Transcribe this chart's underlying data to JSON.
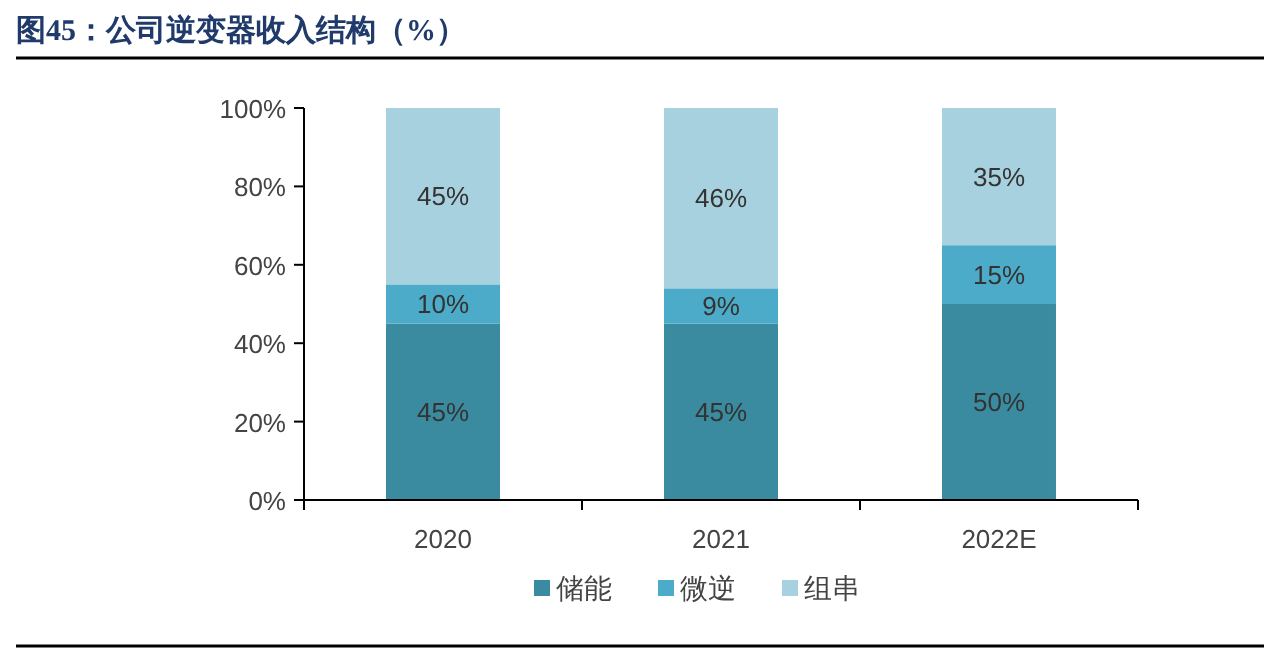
{
  "chart_data": {
    "type": "bar",
    "title": "图45：公司逆变器收入结构（%）",
    "categories": [
      "2020",
      "2021",
      "2022E"
    ],
    "stacked": true,
    "series": [
      {
        "name": "储能",
        "color": "#3b8ba0",
        "values": [
          45,
          45,
          50
        ],
        "value_labels": [
          "45%",
          "45%",
          "50%"
        ]
      },
      {
        "name": "微逆",
        "color": "#4babc8",
        "values": [
          10,
          9,
          15
        ],
        "value_labels": [
          "10%",
          "9%",
          "15%"
        ]
      },
      {
        "name": "组串",
        "color": "#a8d1df",
        "values": [
          45,
          46,
          35
        ],
        "value_labels": [
          "45%",
          "46%",
          "35%"
        ]
      }
    ],
    "ylim": [
      0,
      100
    ],
    "yticks": [
      {
        "value": 0,
        "label": "0%"
      },
      {
        "value": 20,
        "label": "20%"
      },
      {
        "value": 40,
        "label": "40%"
      },
      {
        "value": 60,
        "label": "60%"
      },
      {
        "value": 80,
        "label": "80%"
      },
      {
        "value": 100,
        "label": "100%"
      }
    ],
    "legend": "bottom"
  }
}
